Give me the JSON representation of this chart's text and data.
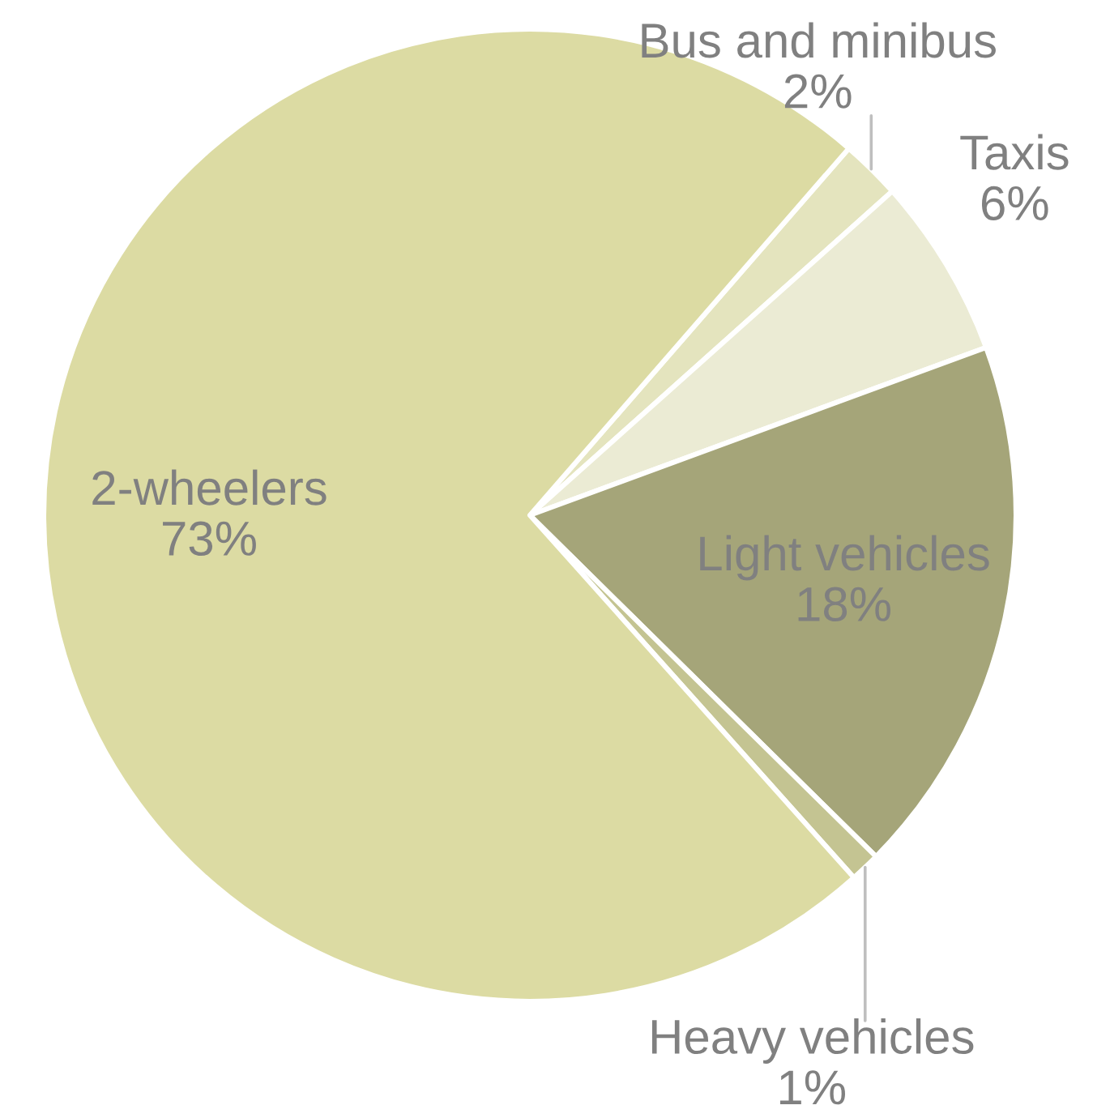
{
  "chart_data": {
    "type": "pie",
    "categories": [
      "Bus and minibus",
      "Taxis",
      "Light vehicles",
      "Heavy vehicles",
      "2-wheelers"
    ],
    "values": [
      2,
      6,
      18,
      1,
      73
    ],
    "colors": [
      "#e4e4be",
      "#ebebd4",
      "#a5a579",
      "#c4c492",
      "#dcdba3"
    ],
    "value_labels": [
      "2%",
      "6%",
      "18%",
      "1%",
      "73%"
    ]
  }
}
